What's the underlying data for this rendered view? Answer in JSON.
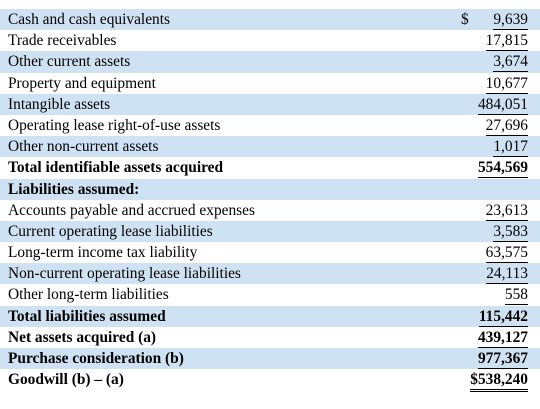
{
  "rows": [
    {
      "label": "Cash and cash equivalents",
      "currency": "$",
      "amount": "9,639",
      "bold": false,
      "shaded": true
    },
    {
      "label": "Trade receivables",
      "amount": "17,815",
      "bold": false,
      "shaded": false
    },
    {
      "label": "Other current assets",
      "amount": "3,674",
      "bold": false,
      "shaded": true
    },
    {
      "label": "Property and equipment",
      "amount": "10,677",
      "bold": false,
      "shaded": false
    },
    {
      "label": "Intangible assets",
      "amount": "484,051",
      "bold": false,
      "shaded": true
    },
    {
      "label": "Operating lease right-of-use assets",
      "amount": "27,696",
      "bold": false,
      "shaded": false
    },
    {
      "label": "Other non-current assets",
      "amount": "1,017",
      "bold": false,
      "shaded": true
    },
    {
      "label": "Total identifiable assets acquired",
      "amount": "554,569",
      "bold": true,
      "shaded": false
    },
    {
      "label": "Liabilities assumed:",
      "amount": "",
      "bold": true,
      "shaded": true
    },
    {
      "label": "Accounts payable and accrued expenses",
      "amount": "23,613",
      "bold": false,
      "shaded": false
    },
    {
      "label": "Current operating lease liabilities",
      "amount": "3,583",
      "bold": false,
      "shaded": true
    },
    {
      "label": "Long-term income tax liability",
      "amount": "63,575",
      "bold": false,
      "shaded": false
    },
    {
      "label": "Non-current operating lease liabilities",
      "amount": "24,113",
      "bold": false,
      "shaded": true
    },
    {
      "label": "Other long-term liabilities",
      "amount": "558",
      "bold": false,
      "shaded": false
    },
    {
      "label": "Total liabilities assumed",
      "amount": "115,442",
      "bold": true,
      "shaded": true
    },
    {
      "label": "Net assets acquired (a)",
      "amount": "439,127",
      "bold": true,
      "shaded": false
    },
    {
      "label": "Purchase consideration (b)",
      "amount": "977,367",
      "bold": true,
      "shaded": true
    },
    {
      "label": "Goodwill (b) – (a)",
      "amount": "$538,240",
      "bold": true,
      "shaded": false
    }
  ]
}
